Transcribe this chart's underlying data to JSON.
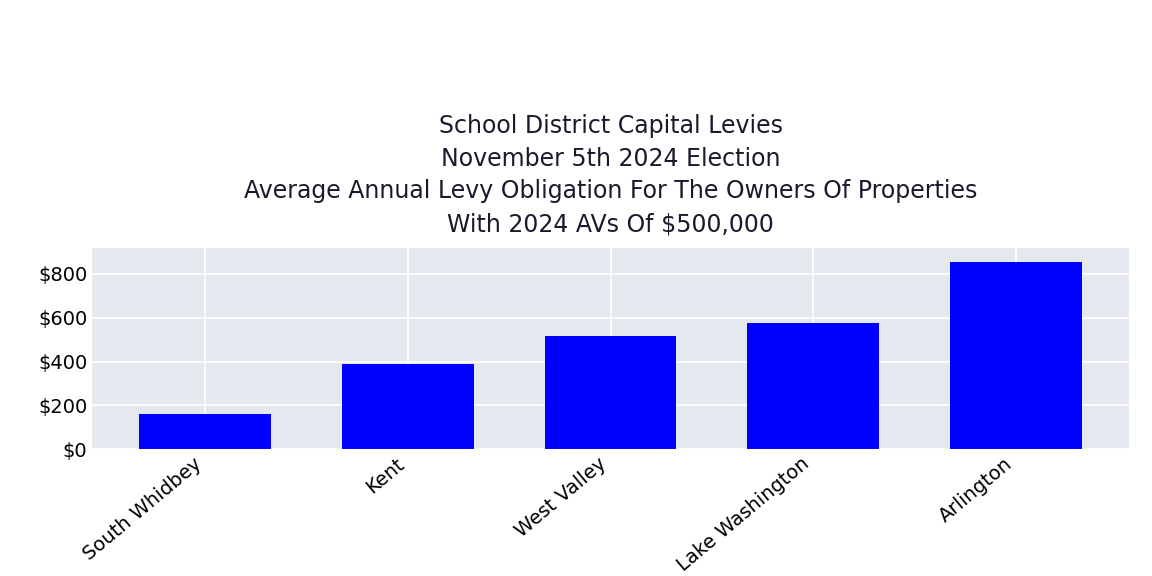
{
  "categories": [
    "South Whidbey",
    "Kent",
    "West Valley",
    "Lake Washington",
    "Arlington"
  ],
  "values": [
    160,
    390,
    515,
    578,
    855
  ],
  "bar_color": "#0000ff",
  "background_color": "#e6e8f0",
  "title_lines": [
    "School District Capital Levies",
    "November 5th 2024 Election",
    "Average Annual Levy Obligation For The Owners Of Properties",
    "With 2024 AVs Of $500,000"
  ],
  "title_fontsize": 17,
  "tick_fontsize": 14,
  "xlabel_rotation": 40,
  "ylim": [
    0,
    920
  ],
  "yticks": [
    0,
    200,
    400,
    600,
    800
  ],
  "grid_color": "#ffffff",
  "outer_background": "#ffffff",
  "bar_width": 0.65
}
